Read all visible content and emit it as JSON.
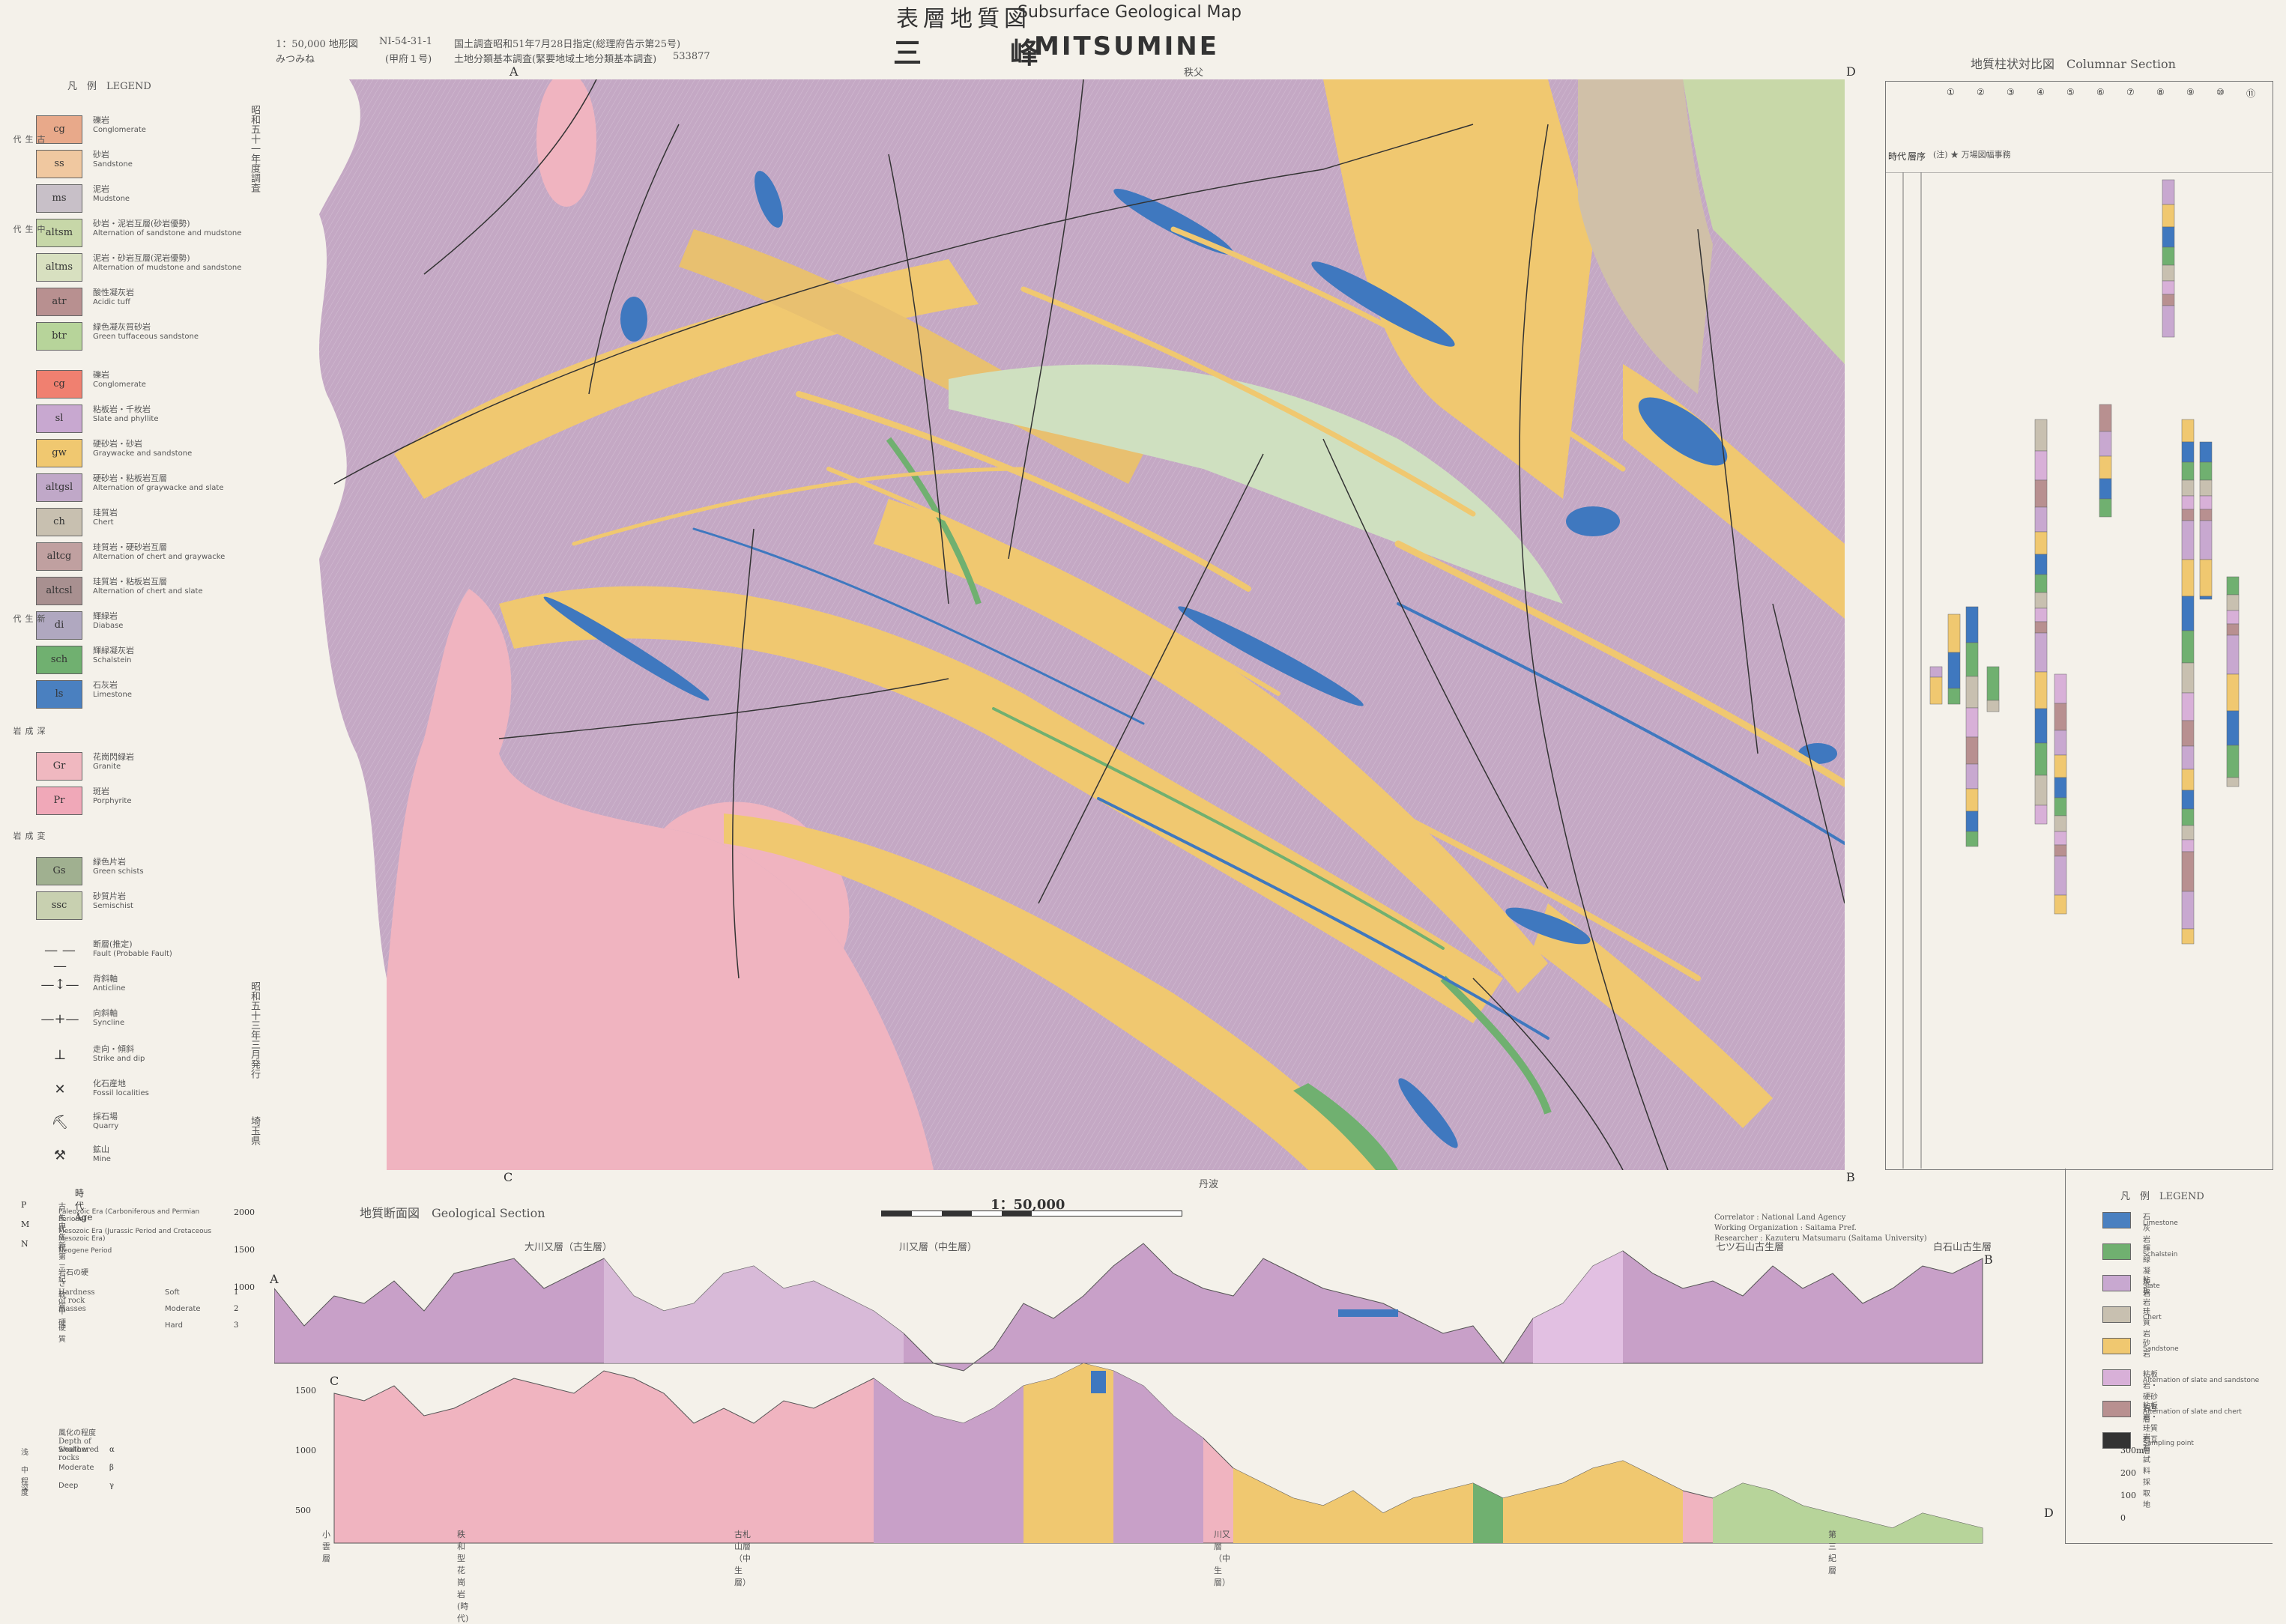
{
  "header": {
    "scale_label": "1：50,000 地形図",
    "sheet_code": "NI-54-31-1",
    "sheet_sub": "(甲府１号)",
    "reading": "みつみね",
    "survey_line1": "国土調査昭和51年7月28日指定(総理府告示第25号)",
    "survey_line2": "土地分類基本調査(緊要地域土地分類基本調査)",
    "survey_no": "533877",
    "title_jp": "表層地質図",
    "title_en": "Subsurface Geological Map",
    "name_jp": "三　峰",
    "name_en": "MITSUMINE"
  },
  "legend": {
    "title": "凡　例　LEGEND",
    "items": [
      {
        "code": "cg",
        "jp": "礫岩",
        "en": "Conglomerate",
        "color": "#e8a98a"
      },
      {
        "code": "ss",
        "jp": "砂岩",
        "en": "Sandstone",
        "color": "#f0c8a0"
      },
      {
        "code": "ms",
        "jp": "泥岩",
        "en": "Mudstone",
        "color": "#c8c0c8"
      },
      {
        "code": "altsm",
        "jp": "砂岩・泥岩互層(砂岩優勢)",
        "en": "Alternation of sandstone and mudstone",
        "color": "#c7d7a8"
      },
      {
        "code": "altms",
        "jp": "泥岩・砂岩互層(泥岩優勢)",
        "en": "Alternation of mudstone and sandstone",
        "color": "#d8e0c0"
      },
      {
        "code": "atr",
        "jp": "酸性凝灰岩",
        "en": "Acidic tuff",
        "color": "#b89090"
      },
      {
        "code": "btr",
        "jp": "緑色凝灰質砂岩",
        "en": "Green tuffaceous sandstone",
        "color": "#b7d49a"
      },
      {
        "code": "cg",
        "jp": "礫岩",
        "en": "Conglomerate",
        "color": "#f08070"
      },
      {
        "code": "sl",
        "jp": "粘板岩・千枚岩",
        "en": "Slate and phyllite",
        "color": "#c8a8d0"
      },
      {
        "code": "gw",
        "jp": "硬砂岩・砂岩",
        "en": "Graywacke and sandstone",
        "color": "#f0c870"
      },
      {
        "code": "altgsl",
        "jp": "硬砂岩・粘板岩互層",
        "en": "Alternation of graywacke and slate",
        "color": "#c0a8c8"
      },
      {
        "code": "ch",
        "jp": "珪質岩",
        "en": "Chert",
        "color": "#c8c0b0"
      },
      {
        "code": "altcg",
        "jp": "珪質岩・硬砂岩互層",
        "en": "Alternation of chert and graywacke",
        "color": "#c0a0a0"
      },
      {
        "code": "altcsl",
        "jp": "珪質岩・粘板岩互層",
        "en": "Alternation of chert and slate",
        "color": "#a89090"
      },
      {
        "code": "di",
        "jp": "輝緑岩",
        "en": "Diabase",
        "color": "#b0a8c0"
      },
      {
        "code": "sch",
        "jp": "輝緑凝灰岩",
        "en": "Schalstein",
        "color": "#70b070"
      },
      {
        "code": "ls",
        "jp": "石灰岩",
        "en": "Limestone",
        "color": "#4a80c0"
      },
      {
        "code": "Gr",
        "jp": "花崗閃緑岩",
        "en": "Granite",
        "color": "#f0b8c0"
      },
      {
        "code": "Pr",
        "jp": "斑岩",
        "en": "Porphyrite",
        "color": "#f0a8b8"
      },
      {
        "code": "Gs",
        "jp": "緑色片岩",
        "en": "Green schists",
        "color": "#a0b090"
      },
      {
        "code": "ssc",
        "jp": "砂質片岩",
        "en": "Semischist",
        "color": "#c8d0b0"
      }
    ],
    "symbols": [
      {
        "jp": "断層(推定)",
        "en": "Fault (Probable Fault)",
        "glyph": "— — —"
      },
      {
        "jp": "背斜軸",
        "en": "Anticline",
        "glyph": "—↕—"
      },
      {
        "jp": "向斜軸",
        "en": "Syncline",
        "glyph": "—+—"
      },
      {
        "jp": "走向・傾斜",
        "en": "Strike and dip",
        "glyph": "⊥"
      },
      {
        "jp": "化石産地",
        "en": "Fossil localities",
        "glyph": "✕"
      },
      {
        "jp": "採石場",
        "en": "Quarry",
        "glyph": "⛏"
      },
      {
        "jp": "鉱山",
        "en": "Mine",
        "glyph": "⚒"
      }
    ],
    "era_labels": [
      "古生代",
      "中生代",
      "新生代",
      "深成岩",
      "変成岩"
    ]
  },
  "map": {
    "corner_a": "A",
    "corner_b": "B",
    "corner_c": "C",
    "corner_d": "D",
    "top_margin_text": "秩父",
    "bottom_margin_text": "丹波",
    "left_vertical": "昭和五十一年度調査",
    "left_vertical2": "昭和五十三年三月発行",
    "prefecture": "埼玉県"
  },
  "columnar": {
    "title": "地質柱状対比図　Columnar Section",
    "age_header": "時代",
    "formation_header": "層序",
    "note": "(注) ★ 万場図幅事務",
    "columns": [
      "①",
      "②",
      "③",
      "④",
      "⑤",
      "⑥",
      "⑦",
      "⑧",
      "⑨",
      "⑩",
      "⑪"
    ],
    "legend_title": "凡　例　LEGEND",
    "legend": [
      {
        "jp": "石灰岩",
        "en": "Limestone",
        "color": "#4a80c0"
      },
      {
        "jp": "輝緑凝灰岩",
        "en": "Schalstein",
        "color": "#70b070"
      },
      {
        "jp": "粘板岩",
        "en": "Slate",
        "color": "#c8a8d0"
      },
      {
        "jp": "珪質岩",
        "en": "Chert",
        "color": "#c8c0b0"
      },
      {
        "jp": "砂岩",
        "en": "Sandstone",
        "color": "#f0c870"
      },
      {
        "jp": "粘板岩・硬砂岩互層",
        "en": "Alternation of slate and sandstone",
        "color": "#d8b0d8"
      },
      {
        "jp": "粘板岩・珪質岩互層",
        "en": "Alternation of slate and chert",
        "color": "#b89090"
      },
      {
        "jp": "岩石試料採取地",
        "en": "Sampling point",
        "color": "#333333"
      }
    ],
    "scale_ticks": [
      "300m",
      "200",
      "100",
      "0"
    ]
  },
  "section": {
    "title": "地質断面図　Geological Section",
    "scale": "1：50,000",
    "profile_ab_label": "大川又層（古生層）",
    "profile_ab_label2": "川又層（中生層）",
    "profile_ab_label3": "七ツ石山古生層",
    "profile_ab_label4": "白石山古生層",
    "y_ticks_top": [
      "2000",
      "1500",
      "1000"
    ],
    "y_ticks_bottom": [
      "1500",
      "1000",
      "500"
    ],
    "end_a": "A",
    "end_b": "B",
    "end_c": "C",
    "end_d": "D",
    "bottom_labels": [
      "小雲層",
      "秩和型花崗岩(時代)",
      "古札山層（中生層）",
      "川又層（中生層）",
      "第三紀層"
    ]
  },
  "age_key": {
    "title": "時　代　Age",
    "rows": [
      {
        "code": "P",
        "jp": "古生代",
        "en": "Paleozoic Era (Carboniferous and Permian Periods)"
      },
      {
        "code": "M",
        "jp": "中生代",
        "en": "Mesozoic Era (Jurassic Period and Cretaceous Mesozoic Era)"
      },
      {
        "code": "N",
        "jp": "新第三紀",
        "en": "Neogene Period"
      }
    ],
    "hardness_title": "岩石の硬さ Hardness of rock masses",
    "hardness": [
      {
        "jp": "軟質",
        "en": "Soft",
        "n": "1"
      },
      {
        "jp": "中硬",
        "en": "Moderate",
        "n": "2"
      },
      {
        "jp": "硬質",
        "en": "Hard",
        "n": "3"
      }
    ],
    "weathering_title": "風化の程度 Depth of weathered rocks",
    "weathering": [
      {
        "jp": "浅",
        "en": "Shallow",
        "s": "α"
      },
      {
        "jp": "中程度",
        "en": "Moderate",
        "s": "β"
      },
      {
        "jp": "深",
        "en": "Deep",
        "s": "γ"
      }
    ]
  },
  "credits": {
    "line1": "Correlator : National Land Agency",
    "line2": "Working Organization : Saitama Pref.",
    "line3": "Researcher : Kazuteru Matsumaru (Saitama University)"
  }
}
